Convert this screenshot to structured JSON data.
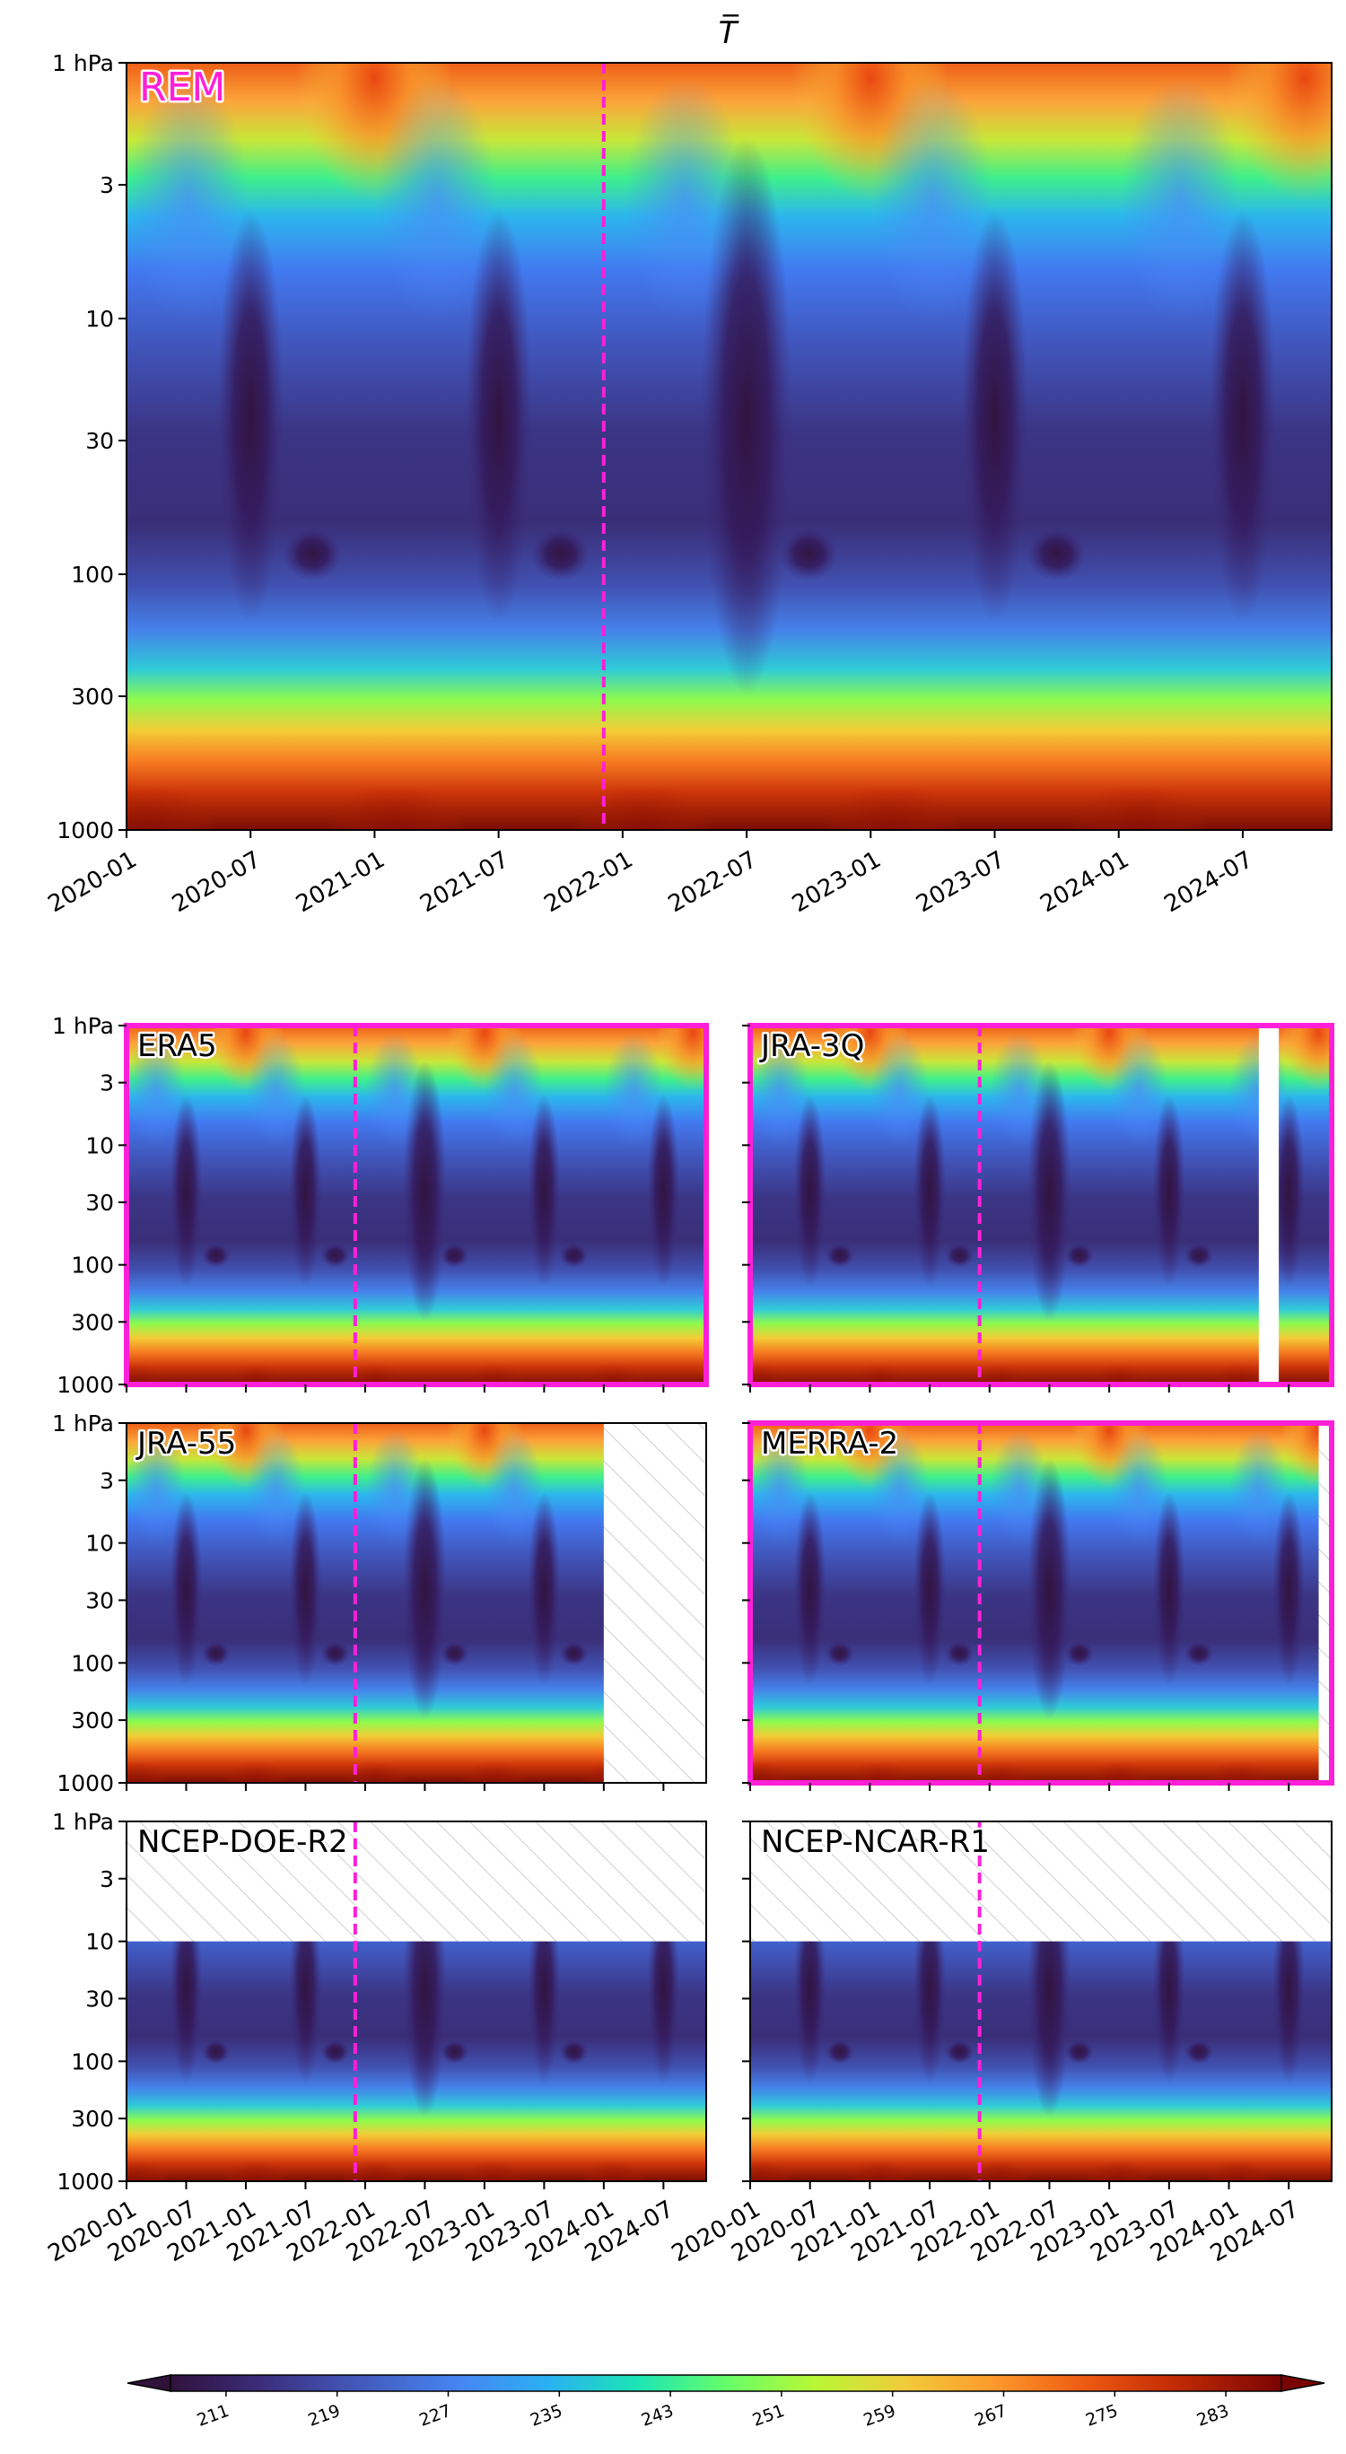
{
  "figure": {
    "title": "T̅",
    "pressure_ticks": [
      {
        "label": "1 hPa",
        "p": 1
      },
      {
        "label": "3",
        "p": 3
      },
      {
        "label": "10",
        "p": 10
      },
      {
        "label": "30",
        "p": 30
      },
      {
        "label": "100",
        "p": 100
      },
      {
        "label": "300",
        "p": 300
      },
      {
        "label": "1000",
        "p": 1000
      }
    ],
    "time_ticks_top": [
      "2020-01",
      "2020-07",
      "2021-01",
      "2021-07",
      "2022-01",
      "2022-07",
      "2023-01",
      "2023-07",
      "2024-01",
      "2024-07"
    ],
    "time_ticks_bottom": [
      "2020-01",
      "2020-07",
      "2021-01",
      "2021-07",
      "2022-01",
      "2022-07",
      "2023-01",
      "2023-07",
      "2024-01",
      "2024-07"
    ],
    "accent_color": "#ff1fd8",
    "colormap": "turbo"
  },
  "chart_data": [
    {
      "type": "heatmap",
      "name": "REM",
      "x_range": [
        "2020-01",
        "2024-11"
      ],
      "y_range_hpa": [
        1000,
        1
      ],
      "y_scale": "log",
      "y_inverted": true,
      "reference_line_date": "2021-12",
      "highlighted": false,
      "missing": null
    },
    {
      "type": "heatmap",
      "name": "ERA5",
      "x_range": [
        "2020-01",
        "2024-11"
      ],
      "y_range_hpa": [
        1000,
        1
      ],
      "y_scale": "log",
      "reference_line_date": "2021-12",
      "highlighted": true,
      "missing": null
    },
    {
      "type": "heatmap",
      "name": "JRA-3Q",
      "x_range": [
        "2020-01",
        "2024-11"
      ],
      "y_range_hpa": [
        1000,
        1
      ],
      "y_scale": "log",
      "reference_line_date": "2021-12",
      "highlighted": true,
      "missing": {
        "kind": "gap",
        "from": "2024-04",
        "to": "2024-06"
      }
    },
    {
      "type": "heatmap",
      "name": "JRA-55",
      "x_range": [
        "2020-01",
        "2024-11"
      ],
      "y_range_hpa": [
        1000,
        1
      ],
      "y_scale": "log",
      "reference_line_date": "2021-12",
      "highlighted": false,
      "missing": {
        "kind": "after",
        "from": "2024-01"
      }
    },
    {
      "type": "heatmap",
      "name": "MERRA-2",
      "x_range": [
        "2020-01",
        "2024-11"
      ],
      "y_range_hpa": [
        1000,
        1
      ],
      "y_scale": "log",
      "reference_line_date": "2021-12",
      "highlighted": true,
      "missing": {
        "kind": "after",
        "from": "2024-10"
      }
    },
    {
      "type": "heatmap",
      "name": "NCEP-DOE-R2",
      "x_range": [
        "2020-01",
        "2024-11"
      ],
      "y_range_hpa": [
        1000,
        1
      ],
      "y_scale": "log",
      "reference_line_date": "2021-12",
      "highlighted": false,
      "missing": {
        "kind": "above_hpa",
        "p": 10
      }
    },
    {
      "type": "heatmap",
      "name": "NCEP-NCAR-R1",
      "x_range": [
        "2020-01",
        "2024-11"
      ],
      "y_range_hpa": [
        1000,
        1
      ],
      "y_scale": "log",
      "reference_line_date": "2021-12",
      "highlighted": false,
      "missing": {
        "kind": "above_hpa",
        "p": 10
      }
    }
  ],
  "colorbar": {
    "ticks": [
      "211",
      "219",
      "227",
      "235",
      "243",
      "251",
      "259",
      "267",
      "275",
      "283"
    ],
    "min": 207,
    "max": 287,
    "extend": "both"
  }
}
